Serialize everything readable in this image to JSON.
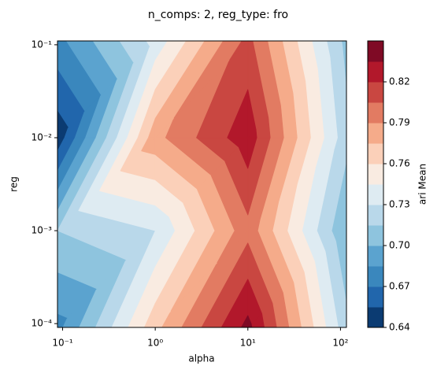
{
  "chart_data": {
    "type": "contourf",
    "title": "n_comps: 2, reg_type: fro",
    "x_label": "alpha",
    "y_label": "reg",
    "colorbar_label": "ari Mean",
    "x": [
      0.088,
      1,
      10,
      116
    ],
    "y": [
      9.1e-05,
      0.001,
      0.01,
      0.11
    ],
    "z": [
      [
        0.68,
        0.77,
        0.84,
        0.72
      ],
      [
        0.715,
        0.73,
        0.8,
        0.7
      ],
      [
        0.645,
        0.785,
        0.83,
        0.72
      ],
      [
        0.68,
        0.735,
        0.81,
        0.71
      ]
    ],
    "x_scale": "log",
    "y_scale": "log",
    "xlim": [
      0.088,
      116
    ],
    "ylim": [
      9.1e-05,
      0.11
    ],
    "xticks": [
      {
        "value": 0.1,
        "label": "10⁻¹"
      },
      {
        "value": 1,
        "label": "10⁰"
      },
      {
        "value": 10,
        "label": "10¹"
      },
      {
        "value": 100,
        "label": "10²"
      }
    ],
    "yticks": [
      {
        "value": 0.0001,
        "label": "10⁻⁴"
      },
      {
        "value": 0.001,
        "label": "10⁻³"
      },
      {
        "value": 0.01,
        "label": "10⁻²"
      },
      {
        "value": 0.1,
        "label": "10⁻¹"
      }
    ],
    "levels": [
      0.64,
      0.655,
      0.67,
      0.685,
      0.7,
      0.715,
      0.73,
      0.745,
      0.76,
      0.775,
      0.79,
      0.805,
      0.82,
      0.835,
      0.85
    ],
    "colors": [
      "#0b3b72",
      "#2166ac",
      "#3a87bd",
      "#5ba3cf",
      "#8ec4de",
      "#b9d8ea",
      "#deebf2",
      "#f9ebe1",
      "#fbd0b9",
      "#f5ab8a",
      "#e27b62",
      "#c94741",
      "#b2182b",
      "#7f0a25"
    ],
    "colorbar_ticks": [
      0.64,
      0.67,
      {
        "value": 0.7,
        "label": "0.70"
      },
      0.73,
      0.76,
      0.79,
      0.82
    ]
  }
}
